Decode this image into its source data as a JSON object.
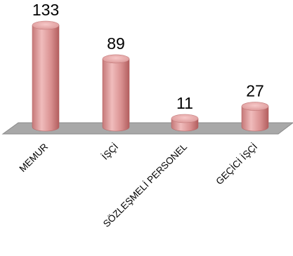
{
  "chart_data": {
    "type": "bar",
    "style": "3d-cylinder",
    "categories": [
      "MEMUR",
      "İŞÇİ",
      "SÖZLEŞMELİ PERSONEL",
      "GEÇİCİ İŞÇİ"
    ],
    "values": [
      133,
      89,
      11,
      27
    ],
    "value_labels": [
      "133",
      "89",
      "11",
      "27"
    ],
    "title": "",
    "xlabel": "",
    "ylabel": "",
    "ylim": [
      0,
      133
    ],
    "grid": false,
    "legend": "none",
    "colors": {
      "bar_light": "#f2c2c2",
      "bar_mid": "#d98e8e",
      "bar_dark": "#b86464",
      "bar_top": "#e9a9a9",
      "floor": "#a8a8a8",
      "floor_edge": "#8a8a8a"
    }
  }
}
